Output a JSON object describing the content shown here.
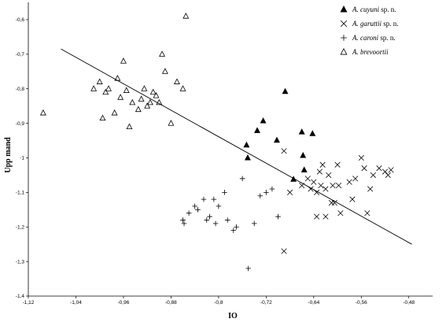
{
  "chart_data": {
    "type": "scatter",
    "title": "",
    "xlabel": "IO",
    "ylabel": "Upp mand",
    "xlim": [
      -1.12,
      -0.44
    ],
    "ylim": [
      -1.4,
      -0.55
    ],
    "x_ticks": [
      "-1,12",
      "-1,04",
      "-0,96",
      "-0,88",
      "-0,8",
      "-0,72",
      "-0,64",
      "-0,56",
      "-0,48"
    ],
    "y_ticks": [
      "-0,6",
      "-0,7",
      "-0,8",
      "-0,9",
      "-1",
      "-1,1",
      "-1,2",
      "-1,3",
      "-1,4"
    ],
    "legend_position": "top-right",
    "grid": false,
    "series": [
      {
        "name": "A. cuyuni",
        "name_suffix": " sp. n.",
        "marker": "filled-triangle",
        "points": [
          [
            -0.753,
            -0.963
          ],
          [
            -0.751,
            -1.0
          ],
          [
            -0.735,
            -0.921
          ],
          [
            -0.725,
            -0.893
          ],
          [
            -0.702,
            -0.949
          ],
          [
            -0.688,
            -0.808
          ],
          [
            -0.674,
            -1.062
          ],
          [
            -0.66,
            -0.925
          ],
          [
            -0.658,
            -0.993
          ],
          [
            -0.656,
            -1.035
          ],
          [
            -0.642,
            -0.93
          ]
        ]
      },
      {
        "name": "A. garuttii",
        "name_suffix": " sp. n.",
        "marker": "x",
        "points": [
          [
            -0.69,
            -0.98
          ],
          [
            -0.68,
            -1.1
          ],
          [
            -0.66,
            -1.08
          ],
          [
            -0.65,
            -1.06
          ],
          [
            -0.645,
            -1.09
          ],
          [
            -0.64,
            -1.07
          ],
          [
            -0.635,
            -1.1
          ],
          [
            -0.63,
            -1.04
          ],
          [
            -0.628,
            -1.08
          ],
          [
            -0.625,
            -1.02
          ],
          [
            -0.62,
            -1.09
          ],
          [
            -0.615,
            -1.05
          ],
          [
            -0.61,
            -1.13
          ],
          [
            -0.608,
            -1.08
          ],
          [
            -0.605,
            -1.13
          ],
          [
            -0.6,
            -1.02
          ],
          [
            -0.598,
            -1.08
          ],
          [
            -0.595,
            -1.16
          ],
          [
            -0.58,
            -1.07
          ],
          [
            -0.575,
            -1.12
          ],
          [
            -0.57,
            -1.06
          ],
          [
            -0.56,
            -1.0
          ],
          [
            -0.555,
            -1.03
          ],
          [
            -0.55,
            -1.16
          ],
          [
            -0.545,
            -1.09
          ],
          [
            -0.54,
            -1.05
          ],
          [
            -0.53,
            -1.03
          ],
          [
            -0.52,
            -1.04
          ],
          [
            -0.515,
            -1.05
          ],
          [
            -0.51,
            -1.035
          ],
          [
            -0.62,
            -1.17
          ],
          [
            -0.635,
            -1.17
          ],
          [
            -0.69,
            -1.27
          ]
        ]
      },
      {
        "name": "A. caroni",
        "name_suffix": " sp. n.",
        "marker": "plus",
        "points": [
          [
            -0.86,
            -1.18
          ],
          [
            -0.858,
            -1.19
          ],
          [
            -0.85,
            -1.16
          ],
          [
            -0.84,
            -1.14
          ],
          [
            -0.835,
            -1.15
          ],
          [
            -0.825,
            -1.12
          ],
          [
            -0.82,
            -1.18
          ],
          [
            -0.815,
            -1.17
          ],
          [
            -0.808,
            -1.12
          ],
          [
            -0.805,
            -1.19
          ],
          [
            -0.8,
            -1.14
          ],
          [
            -0.79,
            -1.1
          ],
          [
            -0.785,
            -1.18
          ],
          [
            -0.775,
            -1.21
          ],
          [
            -0.77,
            -1.2
          ],
          [
            -0.76,
            -1.06
          ],
          [
            -0.75,
            -1.32
          ],
          [
            -0.74,
            -1.19
          ],
          [
            -0.73,
            -1.11
          ],
          [
            -0.72,
            -1.1
          ],
          [
            -0.71,
            -1.09
          ],
          [
            -0.7,
            -1.17
          ]
        ]
      },
      {
        "name": "A. brevoortii",
        "name_suffix": "",
        "marker": "open-triangle",
        "points": [
          [
            -1.095,
            -0.87
          ],
          [
            -1.01,
            -0.8
          ],
          [
            -1.0,
            -0.78
          ],
          [
            -0.995,
            -0.885
          ],
          [
            -0.99,
            -0.81
          ],
          [
            -0.985,
            -0.8
          ],
          [
            -0.975,
            -0.87
          ],
          [
            -0.97,
            -0.77
          ],
          [
            -0.965,
            -0.825
          ],
          [
            -0.96,
            -0.72
          ],
          [
            -0.955,
            -0.805
          ],
          [
            -0.95,
            -0.91
          ],
          [
            -0.945,
            -0.84
          ],
          [
            -0.935,
            -0.86
          ],
          [
            -0.93,
            -0.83
          ],
          [
            -0.925,
            -0.8
          ],
          [
            -0.92,
            -0.85
          ],
          [
            -0.915,
            -0.84
          ],
          [
            -0.91,
            -0.81
          ],
          [
            -0.905,
            -0.82
          ],
          [
            -0.9,
            -0.84
          ],
          [
            -0.895,
            -0.7
          ],
          [
            -0.89,
            -0.75
          ],
          [
            -0.88,
            -0.9
          ],
          [
            -0.87,
            -0.78
          ],
          [
            -0.86,
            -0.8
          ],
          [
            -0.855,
            -0.59
          ]
        ]
      }
    ],
    "regression_line": {
      "x": [
        -1.065,
        -0.475
      ],
      "y": [
        -0.685,
        -1.25
      ]
    }
  }
}
